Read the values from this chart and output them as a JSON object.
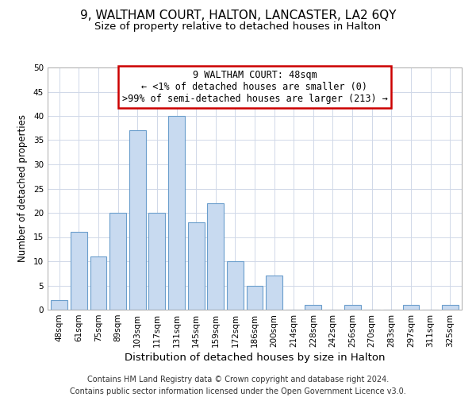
{
  "title": "9, WALTHAM COURT, HALTON, LANCASTER, LA2 6QY",
  "subtitle": "Size of property relative to detached houses in Halton",
  "xlabel": "Distribution of detached houses by size in Halton",
  "ylabel": "Number of detached properties",
  "bar_labels": [
    "48sqm",
    "61sqm",
    "75sqm",
    "89sqm",
    "103sqm",
    "117sqm",
    "131sqm",
    "145sqm",
    "159sqm",
    "172sqm",
    "186sqm",
    "200sqm",
    "214sqm",
    "228sqm",
    "242sqm",
    "256sqm",
    "270sqm",
    "283sqm",
    "297sqm",
    "311sqm",
    "325sqm"
  ],
  "bar_values": [
    2,
    16,
    11,
    20,
    37,
    20,
    40,
    18,
    22,
    10,
    5,
    7,
    0,
    1,
    0,
    1,
    0,
    0,
    1,
    0,
    1
  ],
  "bar_color": "#c8daf0",
  "bar_edge_color": "#6b9ecc",
  "annotation_line1": "9 WALTHAM COURT: 48sqm",
  "annotation_line2": "← <1% of detached houses are smaller (0)",
  "annotation_line3": ">99% of semi-detached houses are larger (213) →",
  "annotation_box_edge_color": "#cc0000",
  "ylim": [
    0,
    50
  ],
  "yticks": [
    0,
    5,
    10,
    15,
    20,
    25,
    30,
    35,
    40,
    45,
    50
  ],
  "footer_line1": "Contains HM Land Registry data © Crown copyright and database right 2024.",
  "footer_line2": "Contains public sector information licensed under the Open Government Licence v3.0.",
  "bg_color": "#ffffff",
  "grid_color": "#d0d8e8",
  "title_fontsize": 11,
  "subtitle_fontsize": 9.5,
  "xlabel_fontsize": 9.5,
  "ylabel_fontsize": 8.5,
  "tick_fontsize": 7.5,
  "annotation_fontsize": 8.5,
  "footer_fontsize": 7
}
